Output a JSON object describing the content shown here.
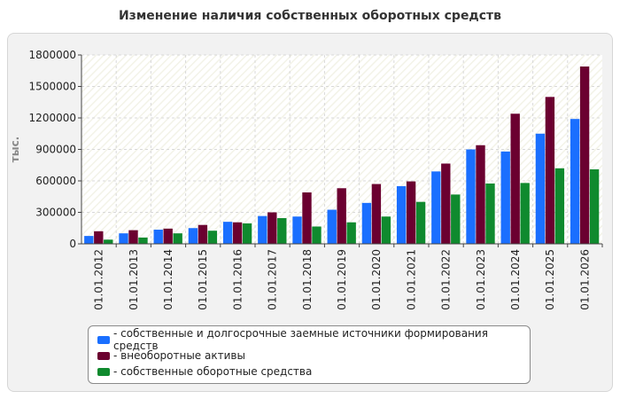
{
  "header": {
    "title": "Изменение наличия собственных оборотных средств"
  },
  "chart_data": {
    "type": "bar",
    "title": "Изменение наличия собственных оборотных средств",
    "ylabel": "тыс.",
    "xlabel": "",
    "ylim": [
      0,
      1800000
    ],
    "yticks": [
      0,
      300000,
      600000,
      900000,
      1200000,
      1500000,
      1800000
    ],
    "grid": true,
    "legend_position": "bottom",
    "categories": [
      "01.01.2012",
      "01.01.2013",
      "01.01.2014",
      "01.01.2015",
      "01.01.2016",
      "01.01.2017",
      "01.01.2018",
      "01.01.2019",
      "01.01.2020",
      "01.01.2021",
      "01.01.2022",
      "01.01.2023",
      "01.01.2024",
      "01.01.2025",
      "01.01.2026"
    ],
    "series": [
      {
        "name": "- собственные и долгосрочные заемные источники формирования средств",
        "color": "#1a6fff",
        "values": [
          75000,
          100000,
          135000,
          150000,
          210000,
          265000,
          260000,
          325000,
          390000,
          550000,
          690000,
          900000,
          880000,
          1050000,
          1190000
        ]
      },
      {
        "name": "- внеоборотные активы",
        "color": "#6b0030",
        "values": [
          120000,
          130000,
          145000,
          180000,
          205000,
          300000,
          490000,
          530000,
          570000,
          595000,
          765000,
          940000,
          1240000,
          1400000,
          1690000
        ]
      },
      {
        "name": "- собственные оборотные средства",
        "color": "#0f8a2e",
        "values": [
          40000,
          60000,
          100000,
          125000,
          195000,
          245000,
          165000,
          205000,
          260000,
          400000,
          470000,
          575000,
          580000,
          720000,
          710000
        ]
      }
    ]
  }
}
